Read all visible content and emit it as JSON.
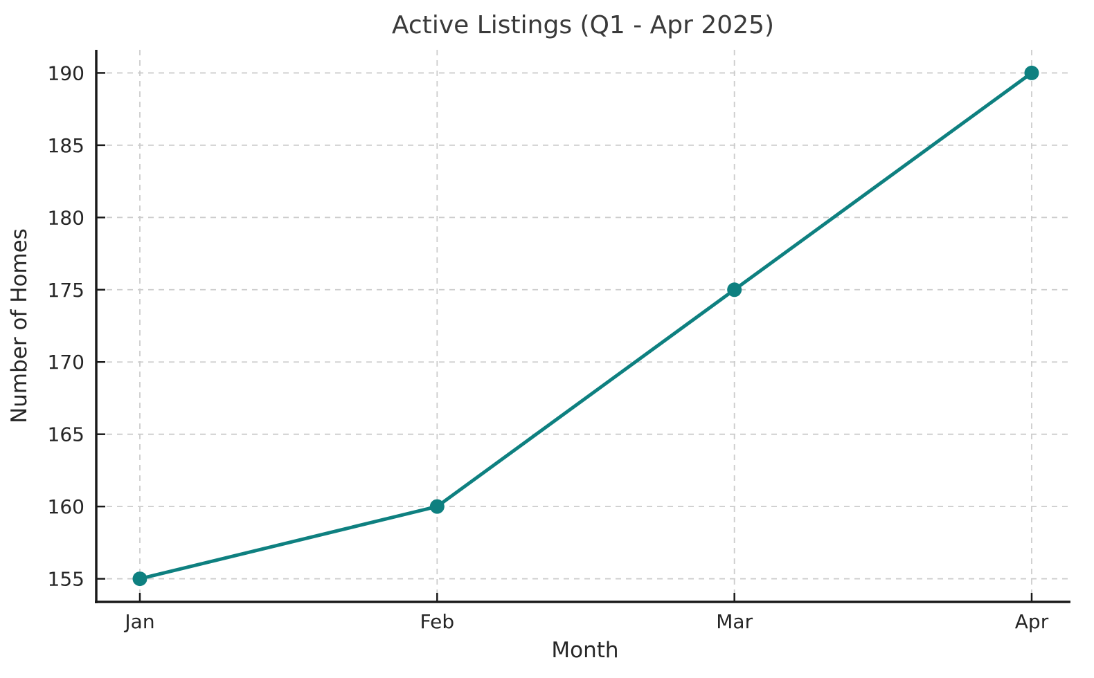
{
  "chart_data": {
    "type": "line",
    "title": "Active Listings (Q1 - Apr 2025)",
    "xlabel": "Month",
    "ylabel": "Number of Homes",
    "categories": [
      "Jan",
      "Feb",
      "Mar",
      "Apr"
    ],
    "series": [
      {
        "name": "Active Listings",
        "values": [
          155,
          160,
          175,
          190
        ]
      }
    ],
    "yticks": [
      155,
      160,
      165,
      170,
      175,
      180,
      185,
      190
    ],
    "ylim": [
      153.4,
      191.6
    ],
    "grid": true,
    "grid_style": "dashed",
    "legend_position": "none",
    "colors": {
      "line": "#0e8080",
      "marker": "#0e8080",
      "grid": "#cccccc",
      "axis": "#1a1a1a",
      "title_text": "#3a3a3a",
      "tick_text": "#262626",
      "background": "#ffffff"
    }
  }
}
